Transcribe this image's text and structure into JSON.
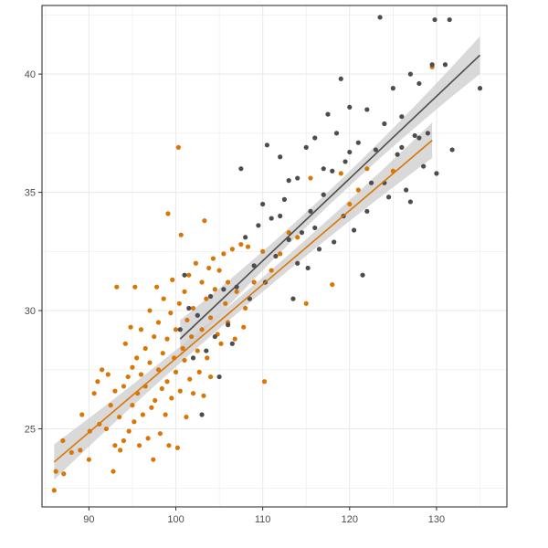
{
  "chart_data": {
    "type": "scatter",
    "title": "",
    "xlabel": "",
    "ylabel": "",
    "xlim": [
      84.6,
      138.1
    ],
    "ylim": [
      21.7,
      42.9
    ],
    "x_ticks": [
      90,
      100,
      110,
      120,
      130
    ],
    "y_ticks": [
      25,
      30,
      35,
      40
    ],
    "grid": true,
    "legend": "none",
    "series": [
      {
        "name": "group_orange",
        "color": "#D97706",
        "fit": {
          "type": "linear",
          "x": [
            86,
            129.5
          ],
          "y": [
            23.6,
            37.2
          ],
          "ci_halfwidth_ends": 0.75,
          "ci_halfwidth_mid": 0.3
        },
        "points": [
          [
            86,
            22.4
          ],
          [
            86.2,
            23.2
          ],
          [
            87,
            24.5
          ],
          [
            87.1,
            23.1
          ],
          [
            88,
            24
          ],
          [
            89,
            24.1
          ],
          [
            89.2,
            25.6
          ],
          [
            90,
            23.7
          ],
          [
            90.1,
            24.9
          ],
          [
            90.6,
            26.5
          ],
          [
            91,
            27
          ],
          [
            91.2,
            25.2
          ],
          [
            91.5,
            27.5
          ],
          [
            92,
            25
          ],
          [
            92.2,
            27.3
          ],
          [
            92.5,
            26
          ],
          [
            92.8,
            23.2
          ],
          [
            93,
            24.3
          ],
          [
            93,
            26.6
          ],
          [
            93.2,
            31
          ],
          [
            93.5,
            25.5
          ],
          [
            93.6,
            24.1
          ],
          [
            94,
            24.5
          ],
          [
            94,
            26.8
          ],
          [
            94.2,
            28.6
          ],
          [
            94.5,
            27.2
          ],
          [
            94.6,
            24.9
          ],
          [
            94.8,
            29.3
          ],
          [
            95,
            26
          ],
          [
            95,
            27.6
          ],
          [
            95.2,
            25.3
          ],
          [
            95.3,
            31
          ],
          [
            95.5,
            28
          ],
          [
            95.6,
            26.5
          ],
          [
            95.8,
            24.3
          ],
          [
            96,
            27.3
          ],
          [
            96,
            29.2
          ],
          [
            96.2,
            25.6
          ],
          [
            96.5,
            28.4
          ],
          [
            96.5,
            26.8
          ],
          [
            96.8,
            24.6
          ],
          [
            97,
            27.8
          ],
          [
            97,
            30
          ],
          [
            97.2,
            25.9
          ],
          [
            97.4,
            23.7
          ],
          [
            97.5,
            28.9
          ],
          [
            97.6,
            26.2
          ],
          [
            97.8,
            31
          ],
          [
            98,
            27.5
          ],
          [
            98,
            29.5
          ],
          [
            98.2,
            24.8
          ],
          [
            98.4,
            26.7
          ],
          [
            98.5,
            28.2
          ],
          [
            98.6,
            30.5
          ],
          [
            98.8,
            25.6
          ],
          [
            99,
            27
          ],
          [
            99,
            28.8
          ],
          [
            99.1,
            34.1
          ],
          [
            99.2,
            24.3
          ],
          [
            99.4,
            29.9
          ],
          [
            99.5,
            26.3
          ],
          [
            99.6,
            31.3
          ],
          [
            99.8,
            28
          ],
          [
            100,
            27.4
          ],
          [
            100,
            29.2
          ],
          [
            100.2,
            24.2
          ],
          [
            100.3,
            36.9
          ],
          [
            100.4,
            30.3
          ],
          [
            100.5,
            26.6
          ],
          [
            100.6,
            33.2
          ],
          [
            100.8,
            28.4
          ],
          [
            101,
            27.9
          ],
          [
            101,
            30.8
          ],
          [
            101.2,
            25.5
          ],
          [
            101.3,
            29.6
          ],
          [
            101.5,
            31.5
          ],
          [
            101.6,
            27.1
          ],
          [
            101.8,
            28.9
          ],
          [
            102,
            26.5
          ],
          [
            102,
            30.1
          ],
          [
            102.3,
            32
          ],
          [
            102.5,
            28.3
          ],
          [
            102.7,
            27.4
          ],
          [
            103,
            29.2
          ],
          [
            103,
            31.2
          ],
          [
            103.2,
            26.4
          ],
          [
            103.3,
            33.8
          ],
          [
            103.5,
            30.5
          ],
          [
            103.6,
            28
          ],
          [
            103.8,
            31.8
          ],
          [
            104,
            29.7
          ],
          [
            104,
            27.2
          ],
          [
            104.3,
            32.2
          ],
          [
            104.5,
            30.9
          ],
          [
            104.8,
            29
          ],
          [
            105,
            31.7
          ],
          [
            105.2,
            28.6
          ],
          [
            105.5,
            32.4
          ],
          [
            105.7,
            30.3
          ],
          [
            106,
            29.5
          ],
          [
            106,
            31.2
          ],
          [
            106.5,
            32.6
          ],
          [
            106.8,
            28.8
          ],
          [
            107,
            30.8
          ],
          [
            107.5,
            32.8
          ],
          [
            107.8,
            29.3
          ],
          [
            108,
            30.1
          ],
          [
            108.3,
            32.7
          ],
          [
            109,
            31.2
          ],
          [
            110,
            32.5
          ],
          [
            110.2,
            27
          ],
          [
            111,
            31.7
          ],
          [
            112,
            32.4
          ],
          [
            113,
            33.3
          ],
          [
            114,
            33.1
          ],
          [
            115,
            30.3
          ],
          [
            115.5,
            35.6
          ],
          [
            117,
            34.9
          ],
          [
            118,
            31.1
          ],
          [
            119,
            35.8
          ],
          [
            120,
            34.5
          ],
          [
            121,
            35.1
          ],
          [
            122,
            36
          ],
          [
            125,
            35.9
          ],
          [
            129.5,
            40.3
          ]
        ]
      },
      {
        "name": "group_dark",
        "color": "#4D4D4D",
        "fit": {
          "type": "linear",
          "x": [
            100.5,
            135
          ],
          "y": [
            28.8,
            40.8
          ],
          "ci_halfwidth_ends": 0.8,
          "ci_halfwidth_mid": 0.3
        },
        "points": [
          [
            100.5,
            29.2
          ],
          [
            101,
            31.5
          ],
          [
            101.5,
            30.1
          ],
          [
            102,
            28
          ],
          [
            102.5,
            29.8
          ],
          [
            103,
            25.6
          ],
          [
            103.5,
            28.3
          ],
          [
            104,
            30.6
          ],
          [
            104.5,
            28.9
          ],
          [
            105,
            27.2
          ],
          [
            105.5,
            30.9
          ],
          [
            106,
            29.4
          ],
          [
            106.5,
            28.6
          ],
          [
            107,
            31
          ],
          [
            107.5,
            36
          ],
          [
            108,
            33.1
          ],
          [
            108.5,
            30.5
          ],
          [
            109,
            31.9
          ],
          [
            109.5,
            33.6
          ],
          [
            110,
            34.5
          ],
          [
            110.3,
            31.2
          ],
          [
            110.5,
            37
          ],
          [
            111,
            33.9
          ],
          [
            111.5,
            32.3
          ],
          [
            112,
            36.5
          ],
          [
            112.5,
            34.7
          ],
          [
            113,
            33
          ],
          [
            113.5,
            30.5
          ],
          [
            114,
            35.6
          ],
          [
            114.5,
            33.3
          ],
          [
            115,
            36.9
          ],
          [
            115.2,
            31.8
          ],
          [
            115.5,
            34.2
          ],
          [
            116,
            37.3
          ],
          [
            116.5,
            32.6
          ],
          [
            117,
            34.9
          ],
          [
            117.5,
            38.3
          ],
          [
            118,
            35.9
          ],
          [
            118.2,
            32.9
          ],
          [
            118.5,
            37.5
          ],
          [
            119,
            39.8
          ],
          [
            119.3,
            34
          ],
          [
            119.5,
            36.3
          ],
          [
            120,
            38.6
          ],
          [
            120.5,
            33.4
          ],
          [
            121,
            37.1
          ],
          [
            121.5,
            31.5
          ],
          [
            122,
            38.5
          ],
          [
            122.5,
            35.4
          ],
          [
            123,
            36.8
          ],
          [
            123.5,
            42.4
          ],
          [
            124,
            37.9
          ],
          [
            124.5,
            34.8
          ],
          [
            125,
            39.4
          ],
          [
            125.5,
            36.6
          ],
          [
            126,
            38.2
          ],
          [
            126.5,
            35.1
          ],
          [
            127,
            40
          ],
          [
            127.5,
            37.4
          ],
          [
            128,
            39.6
          ],
          [
            128.5,
            36.1
          ],
          [
            129,
            37.5
          ],
          [
            129.5,
            40.4
          ],
          [
            129.8,
            42.3
          ],
          [
            130,
            35.8
          ],
          [
            131,
            40.4
          ],
          [
            131.5,
            42.3
          ],
          [
            131.8,
            36.8
          ],
          [
            135,
            39.4
          ],
          [
            112,
            34
          ],
          [
            113,
            35.5
          ],
          [
            114,
            32
          ],
          [
            116,
            33.5
          ],
          [
            117,
            36
          ],
          [
            120,
            36.7
          ],
          [
            122,
            34.2
          ],
          [
            124,
            35.4
          ],
          [
            126,
            36.9
          ],
          [
            127,
            34.6
          ],
          [
            128,
            37.3
          ]
        ]
      }
    ]
  },
  "axes": {
    "x_tick_labels": [
      "90",
      "100",
      "110",
      "120",
      "130"
    ],
    "y_tick_labels": [
      "25",
      "30",
      "35",
      "40"
    ]
  }
}
